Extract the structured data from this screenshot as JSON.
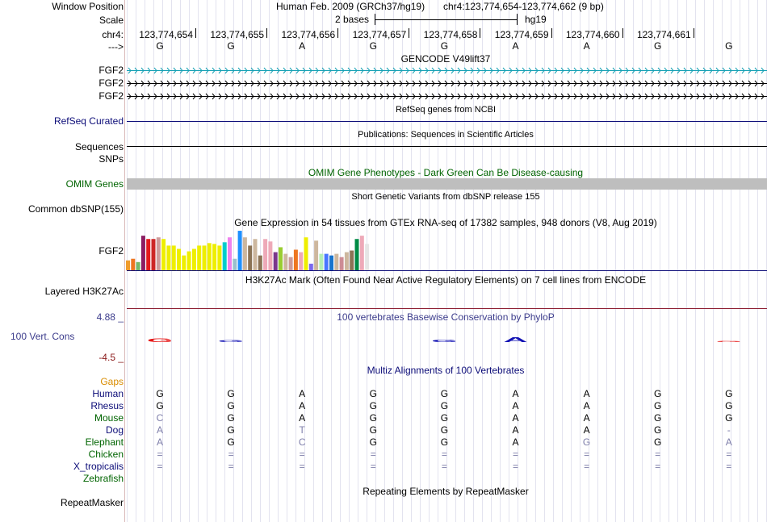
{
  "header": {
    "window_position_label": "Window Position",
    "assembly": "Human Feb. 2009 (GRCh37/hg19)",
    "position": "chr4:123,774,654-123,774,662 (9 bp)",
    "scale_label": "Scale",
    "scale_value": "2 bases",
    "scale_db": "hg19",
    "chrom_label": "chr4:",
    "strand_label": "--->",
    "coords": [
      "123,774,654",
      "123,774,655",
      "123,774,656",
      "123,774,657",
      "123,774,658",
      "123,774,659",
      "123,774,660",
      "123,774,661"
    ],
    "bases": [
      "G",
      "G",
      "A",
      "G",
      "G",
      "A",
      "A",
      "G",
      "G"
    ]
  },
  "tracks": {
    "gencode": {
      "title": "GENCODE V49lift37",
      "genes": [
        "FGF2",
        "FGF2",
        "FGF2"
      ],
      "colors": [
        "#14a0b4",
        "#000000",
        "#000000"
      ]
    },
    "refseq": {
      "title": "RefSeq genes from NCBI",
      "label": "RefSeq Curated",
      "color": "#0c0c78"
    },
    "publications": {
      "title": "Publications: Sequences in Scientific Articles",
      "label": "Sequences"
    },
    "snps_label": "SNPs",
    "omim": {
      "title": "OMIM Gene Phenotypes - Dark Green Can Be Disease-causing",
      "label": "OMIM Genes",
      "color": "#006400",
      "bar_color": "#bebebe"
    },
    "dbsnp": {
      "title": "Short Genetic Variants from dbSNP release 155",
      "label": "Common dbSNP(155)"
    },
    "gtex": {
      "title": "Gene Expression in 54 tissues from GTEx RNA-seq of 17382 samples, 948 donors (V8, Aug 2019)",
      "label": "FGF2",
      "values": [
        12,
        14,
        10,
        42,
        38,
        38,
        40,
        38,
        30,
        30,
        26,
        18,
        23,
        26,
        30,
        30,
        33,
        32,
        30,
        34,
        40,
        14,
        48,
        40,
        30,
        38,
        18,
        38,
        35,
        22,
        28,
        20,
        16,
        25,
        22,
        40,
        8,
        36,
        20,
        20,
        18,
        20,
        16,
        22,
        24,
        38,
        42,
        32
      ],
      "colors": [
        "#f09c2c",
        "#ee7621",
        "#76b96a",
        "#8b1c62",
        "#e31a1c",
        "#cd2626",
        "#cd9b9b",
        "#eeee00",
        "#eeee00",
        "#eeee00",
        "#eeee00",
        "#eeee00",
        "#eeee00",
        "#eeee00",
        "#eeee00",
        "#eeee00",
        "#eeee00",
        "#eeee00",
        "#eeee00",
        "#00cdcd",
        "#ee82ee",
        "#9ac0cd",
        "#1e90ff",
        "#cdb79e",
        "#8b7355",
        "#cdb79e",
        "#8b7355",
        "#eea9b8",
        "#eea9b8",
        "#7a378b",
        "#9acd32",
        "#cdb79e",
        "#cd9b9b",
        "#ee7621",
        "#eea9b8",
        "#eeee00",
        "#7b68ee",
        "#cdb79e",
        "#b4eeb4",
        "#4876ff",
        "#1874cd",
        "#cdb79e",
        "#cd8c95",
        "#cdb79e",
        "#8b7355",
        "#008b45",
        "#eea9b8",
        "#e5e5e5"
      ]
    },
    "h3k27ac": {
      "title": "H3K27Ac Mark (Often Found Near Active Regulatory Elements) on 7 cell lines from ENCODE",
      "label": "Layered H3K27Ac",
      "line_color": "#8b1a2e"
    },
    "phylop": {
      "title": "100 vertebrates Basewise Conservation by PhyloP",
      "label": "100 Vert. Cons",
      "max_label": "4.88 _",
      "min_label": "-4.5 _",
      "scores": [
        -0.4,
        0.2,
        0,
        0,
        0.3,
        0.5,
        0,
        0,
        -0.1
      ],
      "pos_color": "#1414b4",
      "neg_color": "#e61414"
    },
    "multiz": {
      "title": "Multiz Alignments of 100 Vertebrates",
      "gaps_label": "Gaps",
      "species": [
        {
          "name": "Human",
          "color": "#0c0c78",
          "bases": [
            "G",
            "G",
            "A",
            "G",
            "G",
            "A",
            "A",
            "G",
            "G"
          ],
          "faded": [
            false,
            false,
            false,
            false,
            false,
            false,
            false,
            false,
            false
          ]
        },
        {
          "name": "Rhesus",
          "color": "#0c0c78",
          "bases": [
            "G",
            "G",
            "A",
            "G",
            "G",
            "A",
            "A",
            "G",
            "G"
          ],
          "faded": [
            false,
            false,
            false,
            false,
            false,
            false,
            false,
            false,
            false
          ]
        },
        {
          "name": "Mouse",
          "color": "#006400",
          "bases": [
            "C",
            "G",
            "A",
            "G",
            "G",
            "A",
            "A",
            "G",
            "G"
          ],
          "faded": [
            true,
            false,
            false,
            false,
            false,
            false,
            false,
            false,
            false
          ]
        },
        {
          "name": "Dog",
          "color": "#0c0c78",
          "bases": [
            "A",
            "G",
            "T",
            "G",
            "G",
            "A",
            "A",
            "G",
            "-"
          ],
          "faded": [
            true,
            false,
            true,
            false,
            false,
            false,
            false,
            false,
            true
          ]
        },
        {
          "name": "Elephant",
          "color": "#006400",
          "bases": [
            "A",
            "G",
            "C",
            "G",
            "G",
            "A",
            "G",
            "G",
            "A"
          ],
          "faded": [
            true,
            false,
            true,
            false,
            false,
            false,
            true,
            false,
            true
          ]
        },
        {
          "name": "Chicken",
          "color": "#006400",
          "bases": [
            "=",
            "=",
            "=",
            "=",
            "=",
            "=",
            "=",
            "=",
            "="
          ],
          "faded": [
            true,
            true,
            true,
            true,
            true,
            true,
            true,
            true,
            true
          ]
        },
        {
          "name": "X_tropicalis",
          "color": "#0c0c78",
          "bases": [
            "=",
            "=",
            "=",
            "=",
            "=",
            "=",
            "=",
            "=",
            "="
          ],
          "faded": [
            true,
            true,
            true,
            true,
            true,
            true,
            true,
            true,
            true
          ]
        },
        {
          "name": "Zebrafish",
          "color": "#006400",
          "bases": [
            "",
            "",
            "",
            "",
            "",
            "",
            "",
            "",
            ""
          ],
          "faded": [
            false,
            false,
            false,
            false,
            false,
            false,
            false,
            false,
            false
          ]
        }
      ]
    },
    "repeatmasker": {
      "title": "Repeating Elements by RepeatMasker",
      "label": "RepeatMasker"
    }
  },
  "colors": {
    "gaps_label": "#d98c00",
    "phylop_title": "#3c3c8c",
    "min_label": "#8b1a1a"
  }
}
